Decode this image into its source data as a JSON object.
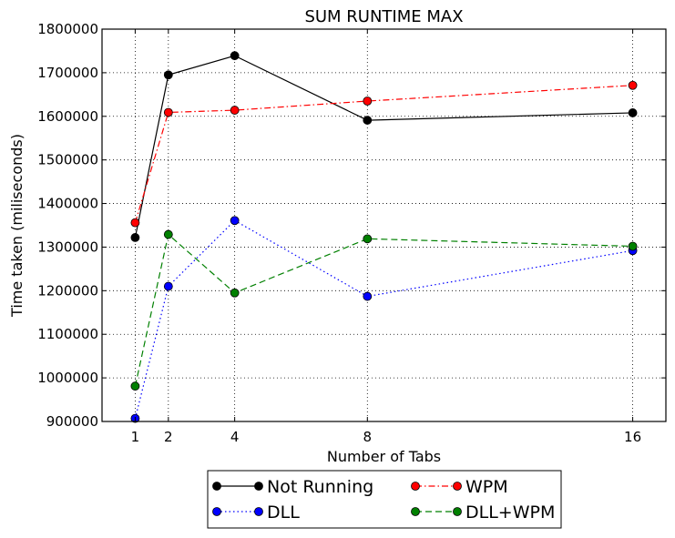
{
  "chart_data": {
    "type": "line",
    "title": "SUM RUNTIME MAX",
    "xlabel": "Number of Tabs",
    "ylabel": "Time taken (miliseconds)",
    "x": [
      1,
      2,
      4,
      8,
      16
    ],
    "xticks": [
      "1",
      "2",
      "4",
      "8",
      "16"
    ],
    "xlim": [
      0,
      17
    ],
    "ylim": [
      900000,
      1800000
    ],
    "yticks": [
      "900000",
      "1000000",
      "1100000",
      "1200000",
      "1300000",
      "1400000",
      "1500000",
      "1600000",
      "1700000",
      "1800000"
    ],
    "grid": true,
    "legend_position": "below",
    "series": [
      {
        "name": "Not Running",
        "color": "#000000",
        "style": "solid",
        "values": [
          1322000,
          1695000,
          1739000,
          1591000,
          1608000
        ]
      },
      {
        "name": "WPM",
        "color": "#ff0000",
        "style": "dashdot",
        "values": [
          1356000,
          1609000,
          1614000,
          1635000,
          1671000
        ]
      },
      {
        "name": "DLL",
        "color": "#0000ff",
        "style": "dotted",
        "values": [
          907000,
          1210000,
          1361000,
          1187000,
          1292000
        ]
      },
      {
        "name": "DLL+WPM",
        "color": "#008000",
        "style": "dashed",
        "values": [
          981000,
          1329000,
          1195000,
          1319000,
          1302000
        ]
      }
    ]
  }
}
